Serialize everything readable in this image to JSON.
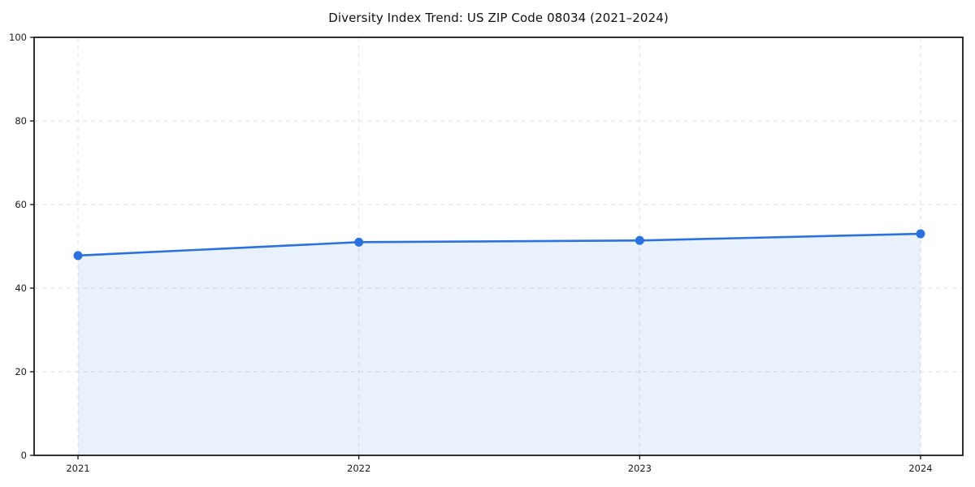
{
  "chart_data": {
    "type": "line",
    "title": "Diversity Index Trend: US ZIP Code 08034 (2021–2024)",
    "xlabel": "",
    "ylabel": "",
    "x": [
      2021,
      2022,
      2023,
      2024
    ],
    "series": [
      {
        "name": "Diversity Index",
        "values": [
          47.8,
          51.0,
          51.4,
          53.0
        ]
      }
    ],
    "xticks": [
      "2021",
      "2022",
      "2023",
      "2024"
    ],
    "yticks": [
      0,
      20,
      40,
      60,
      80,
      100
    ],
    "ylim": [
      0,
      100
    ],
    "grid": true,
    "grid_style": "dashed",
    "legend": "none",
    "marker": "circle",
    "colors": {
      "line": "#2b72e0",
      "marker": "#2b72e0",
      "fill": "rgba(43,114,224,0.10)",
      "grid": "#dfdfdf",
      "spine": "#1a1a1a",
      "tick_label": "#1a1a1a",
      "background": "#ffffff"
    }
  }
}
